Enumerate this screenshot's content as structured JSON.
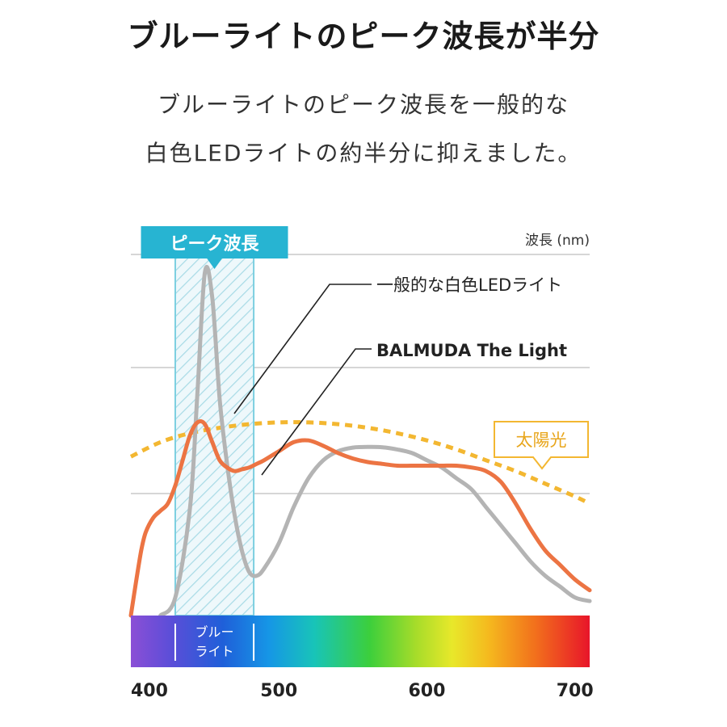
{
  "header": {
    "title": "ブルーライトのピーク波長が半分",
    "lead_line1": "ブルーライトのピーク波長を一般的な",
    "lead_line2": "白色LEDライトの約半分に抑えました。"
  },
  "chart_data": {
    "type": "line",
    "xlabel": "波長 (nm)",
    "xlim": [
      400,
      710
    ],
    "ylim": [
      0,
      1.0
    ],
    "x_ticks": [
      400,
      500,
      600,
      700
    ],
    "peak_band": {
      "label": "ピーク波長",
      "range": [
        430,
        483
      ]
    },
    "spectrum_band": {
      "label_line1": "ブルー",
      "label_line2": "ライト",
      "range": [
        430,
        483
      ]
    },
    "series": [
      {
        "name": "一般的な白色LEDライト",
        "color": "#b4b4b4",
        "x": [
          420,
          430,
          440,
          445,
          450,
          455,
          460,
          465,
          470,
          475,
          480,
          485,
          490,
          500,
          510,
          520,
          530,
          540,
          550,
          560,
          570,
          580,
          590,
          600,
          610,
          620,
          630,
          640,
          650,
          660,
          670,
          680,
          690,
          700,
          710
        ],
        "y": [
          0.0,
          0.05,
          0.3,
          0.62,
          0.95,
          0.88,
          0.6,
          0.42,
          0.28,
          0.18,
          0.12,
          0.11,
          0.13,
          0.2,
          0.3,
          0.38,
          0.43,
          0.455,
          0.465,
          0.467,
          0.466,
          0.46,
          0.45,
          0.43,
          0.41,
          0.38,
          0.35,
          0.3,
          0.25,
          0.2,
          0.15,
          0.11,
          0.08,
          0.05,
          0.04
        ]
      },
      {
        "name": "BALMUDA The Light",
        "color": "#ec7443",
        "x": [
          400,
          403,
          407,
          410,
          415,
          420,
          425,
          430,
          435,
          440,
          445,
          450,
          455,
          460,
          465,
          470,
          475,
          480,
          485,
          490,
          500,
          510,
          520,
          530,
          540,
          550,
          560,
          570,
          580,
          590,
          600,
          610,
          620,
          630,
          640,
          650,
          660,
          670,
          680,
          690,
          700,
          710
        ],
        "y": [
          0.0,
          0.08,
          0.18,
          0.23,
          0.27,
          0.29,
          0.31,
          0.36,
          0.43,
          0.5,
          0.535,
          0.53,
          0.48,
          0.43,
          0.41,
          0.4,
          0.405,
          0.41,
          0.42,
          0.43,
          0.455,
          0.48,
          0.485,
          0.47,
          0.45,
          0.435,
          0.425,
          0.42,
          0.415,
          0.415,
          0.415,
          0.415,
          0.415,
          0.41,
          0.4,
          0.37,
          0.31,
          0.24,
          0.18,
          0.14,
          0.1,
          0.07
        ]
      },
      {
        "name": "太陽光",
        "color": "#f3b731",
        "dashed": true,
        "x": [
          400,
          420,
          440,
          460,
          480,
          500,
          520,
          540,
          560,
          580,
          600,
          620,
          640,
          660,
          680,
          700,
          710
        ],
        "y": [
          0.44,
          0.48,
          0.505,
          0.52,
          0.53,
          0.535,
          0.535,
          0.53,
          0.52,
          0.505,
          0.485,
          0.46,
          0.43,
          0.4,
          0.365,
          0.33,
          0.31
        ]
      }
    ]
  }
}
